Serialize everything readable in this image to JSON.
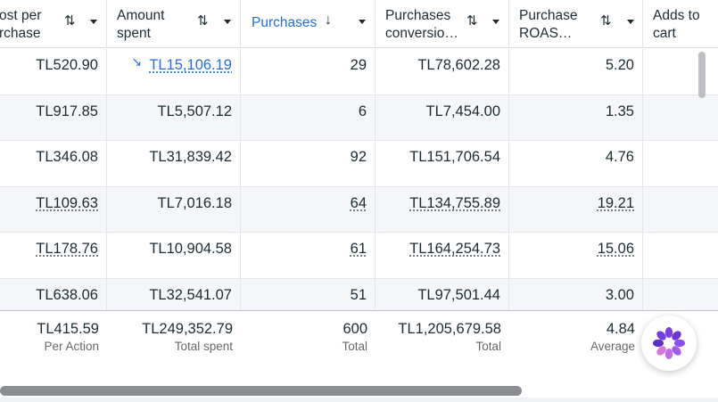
{
  "columns": [
    {
      "key": "cost_per_purchase",
      "title": "ost per\nrchase",
      "sort_icon": "⇅"
    },
    {
      "key": "amount_spent",
      "title": "Amount\nspent",
      "sort_icon": "⇅"
    },
    {
      "key": "purchases",
      "title": "Purchases",
      "sort_icon": "↓",
      "active": true
    },
    {
      "key": "purchases_conversion",
      "title": "Purchases\nconversio…",
      "sort_icon": "⇅"
    },
    {
      "key": "purchase_roas",
      "title": "Purchase\nROAS…",
      "sort_icon": "⇅"
    },
    {
      "key": "adds_to_cart",
      "title": "Adds to\ncart"
    }
  ],
  "rows": [
    {
      "cost_per_purchase": "TL520.90",
      "amount_spent": "TL15,106.19",
      "amount_spent_trend": "↘",
      "purchases": "29",
      "purchases_conversion": "TL78,602.28",
      "purchase_roas": "5.20",
      "adds_to_cart": ""
    },
    {
      "cost_per_purchase": "TL917.85",
      "amount_spent": "TL5,507.12",
      "purchases": "6",
      "purchases_conversion": "TL7,454.00",
      "purchase_roas": "1.35",
      "adds_to_cart": ""
    },
    {
      "cost_per_purchase": "TL346.08",
      "amount_spent": "TL31,839.42",
      "purchases": "92",
      "purchases_conversion": "TL151,706.54",
      "purchase_roas": "4.76",
      "adds_to_cart": ""
    },
    {
      "cost_per_purchase": "TL109.63",
      "amount_spent": "TL7,016.18",
      "purchases": "64",
      "purchases_conversion": "TL134,755.89",
      "purchase_roas": "19.21",
      "adds_to_cart": ""
    },
    {
      "cost_per_purchase": "TL178.76",
      "amount_spent": "TL10,904.58",
      "purchases": "61",
      "purchases_conversion": "TL164,254.73",
      "purchase_roas": "15.06",
      "adds_to_cart": ""
    },
    {
      "cost_per_purchase": "TL638.06",
      "amount_spent": "TL32,541.07",
      "purchases": "51",
      "purchases_conversion": "TL97,501.44",
      "purchase_roas": "3.00",
      "adds_to_cart": ""
    }
  ],
  "totals": {
    "cost_per_purchase": {
      "value": "TL415.59",
      "label": "Per Action"
    },
    "amount_spent": {
      "value": "TL249,352.79",
      "label": "Total spent"
    },
    "purchases": {
      "value": "600",
      "label": "Total"
    },
    "purchases_conversion": {
      "value": "TL1,205,679.58",
      "label": "Total"
    },
    "purchase_roas": {
      "value": "4.84",
      "label": "Average"
    }
  },
  "assistant_button": {
    "icon": "ai-assistant-icon"
  },
  "colors": {
    "accent": "#216fdb",
    "text": "#1c2b33",
    "muted": "#65676b",
    "alt_row": "#f5f6f7"
  }
}
